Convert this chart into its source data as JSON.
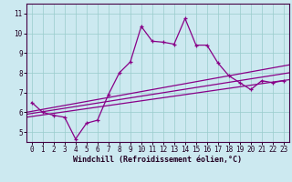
{
  "xlabel": "Windchill (Refroidissement éolien,°C)",
  "xlim": [
    -0.5,
    23.5
  ],
  "ylim": [
    4.5,
    11.5
  ],
  "xticks": [
    0,
    1,
    2,
    3,
    4,
    5,
    6,
    7,
    8,
    9,
    10,
    11,
    12,
    13,
    14,
    15,
    16,
    17,
    18,
    19,
    20,
    21,
    22,
    23
  ],
  "yticks": [
    5,
    6,
    7,
    8,
    9,
    10,
    11
  ],
  "bg_color": "#cce9f0",
  "line_color": "#880088",
  "grid_color": "#99cccc",
  "main_x": [
    0,
    1,
    2,
    3,
    4,
    5,
    6,
    7,
    8,
    9,
    10,
    11,
    12,
    13,
    14,
    15,
    16,
    17,
    18,
    19,
    20,
    21,
    22,
    23
  ],
  "main_y": [
    6.5,
    6.0,
    5.85,
    5.75,
    4.65,
    5.45,
    5.6,
    6.9,
    8.0,
    8.55,
    10.35,
    9.6,
    9.55,
    9.45,
    10.75,
    9.4,
    9.4,
    8.5,
    7.85,
    7.5,
    7.15,
    7.6,
    7.5,
    7.6
  ],
  "trend1_start": 6.0,
  "trend1_end": 8.4,
  "trend2_start": 5.9,
  "trend2_end": 8.0,
  "trend3_start": 5.75,
  "trend3_end": 7.65,
  "xlabel_fontsize": 6,
  "tick_fontsize": 5.5
}
